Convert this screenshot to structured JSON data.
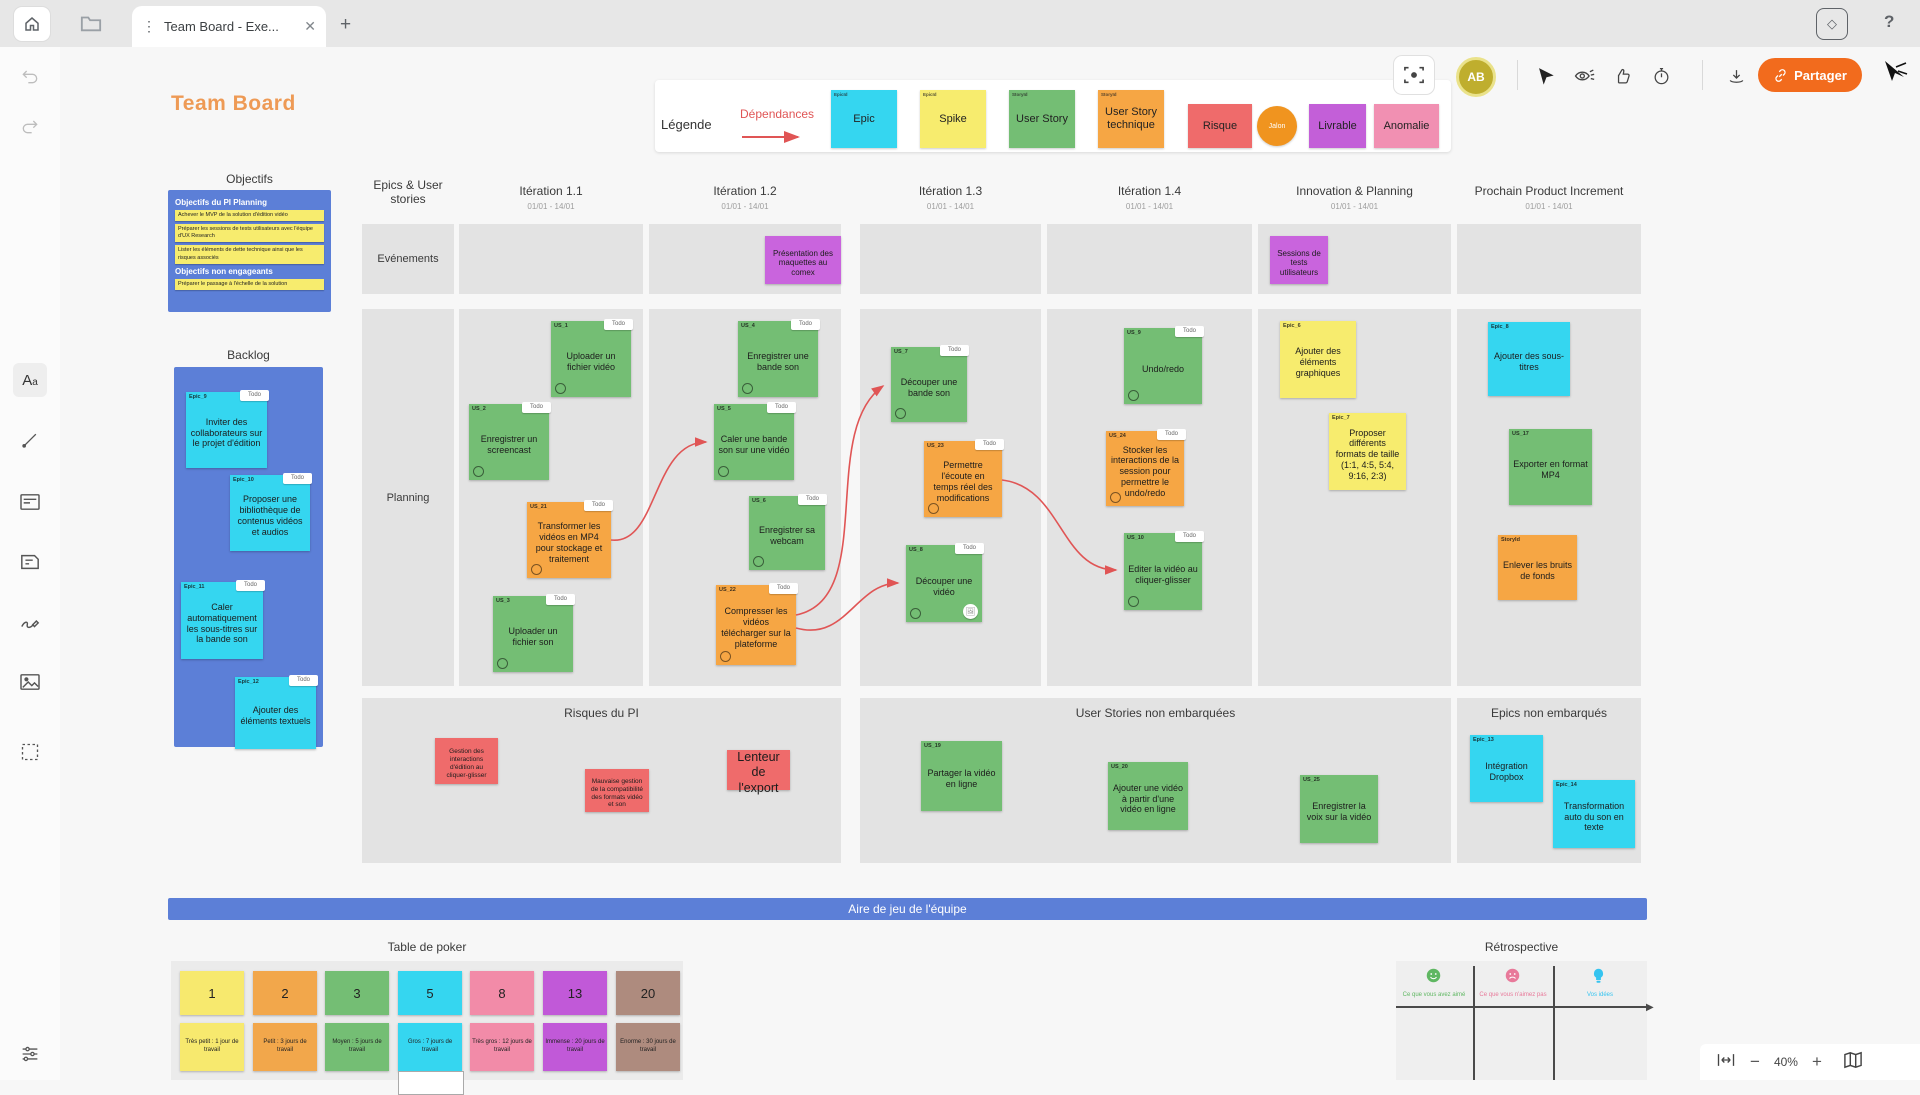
{
  "window": {
    "tab_title": "Team Board - Exe...",
    "share_label": "Partager",
    "avatar_initials": "AB",
    "help_label": "?",
    "zoom_level": "40%"
  },
  "legend": {
    "title": "Légende",
    "dependencies_label": "Dépendances",
    "items": [
      {
        "label": "Epic",
        "tag": "EpicId",
        "color": "#35D6F0",
        "shape": "card"
      },
      {
        "label": "Spike",
        "tag": "EpicId",
        "color": "#F7EC6E",
        "shape": "card"
      },
      {
        "label": "User Story",
        "tag": "StoryId",
        "color": "#74BE74",
        "shape": "card"
      },
      {
        "label": "User Story technique",
        "tag": "StoryId",
        "color": "#F6A644",
        "shape": "card"
      },
      {
        "label": "Risque",
        "color": "#EF6B6B",
        "shape": "rect"
      },
      {
        "label": "Jalon",
        "color": "#F0941F",
        "shape": "circle"
      },
      {
        "label": "Livrable",
        "color": "#C35FD8",
        "shape": "rect"
      },
      {
        "label": "Anomalie",
        "color": "#F190B2",
        "shape": "rect"
      }
    ]
  },
  "board": {
    "title": "Team Board",
    "columns": [
      {
        "label": "Epics & User stories",
        "dates": ""
      },
      {
        "label": "Itération 1.1",
        "dates": "01/01 - 14/01"
      },
      {
        "label": "Itération 1.2",
        "dates": "01/01 - 14/01"
      },
      {
        "label": "Itération 1.3",
        "dates": "01/01 - 14/01"
      },
      {
        "label": "Itération 1.4",
        "dates": "01/01 - 14/01"
      },
      {
        "label": "Innovation & Planning",
        "dates": "01/01 - 14/01"
      },
      {
        "label": "Prochain Product Increment",
        "dates": "01/01 - 14/01"
      }
    ],
    "row_labels": {
      "events": "Evénements",
      "planning": "Planning"
    },
    "objectifs": {
      "title": "Objectifs",
      "section1": "Objectifs du PI Planning",
      "items1": [
        "Achever le MVP de la solution d'édition vidéo",
        "Préparer les sessions de tests utilisateurs avec l'équipe d'UX Research",
        "Lister les éléments de dette technique ainsi que les risques associés"
      ],
      "section2": "Objectifs non engageants",
      "items2": [
        "Préparer le passage à l'échelle de la solution"
      ]
    },
    "backlog_title": "Backlog",
    "sections": {
      "risks": "Risques du PI",
      "stories": "User Stories non embarquées",
      "epics": "Epics non embarqués"
    },
    "play_area": "Aire de jeu de l'équipe",
    "notes": {
      "ev_comex": {
        "type": "event",
        "text": "Présentation des maquettes au comex"
      },
      "ev_tests": {
        "type": "event",
        "text": "Sessions de tests utilisateurs"
      },
      "us1": {
        "type": "story",
        "tag": "US_1",
        "chip": "Todo",
        "text": "Uploader un fichier vidéo",
        "badge": true
      },
      "us2": {
        "type": "story",
        "tag": "US_2",
        "chip": "Todo",
        "text": "Enregistrer un screencast",
        "badge": true
      },
      "us21": {
        "type": "tech",
        "tag": "US_21",
        "chip": "Todo",
        "text": "Transformer les vidéos en MP4 pour stockage et traitement",
        "badge": true
      },
      "us3": {
        "type": "story",
        "tag": "US_3",
        "chip": "Todo",
        "text": "Uploader un fichier son",
        "badge": true
      },
      "us4": {
        "type": "story",
        "tag": "US_4",
        "chip": "Todo",
        "text": "Enregistrer une bande son",
        "badge": true
      },
      "us5": {
        "type": "story",
        "tag": "US_5",
        "chip": "Todo",
        "text": "Caler une bande son sur une vidéo",
        "badge": true
      },
      "us6": {
        "type": "story",
        "tag": "US_6",
        "chip": "Todo",
        "text": "Enregistrer sa webcam",
        "badge": true
      },
      "us22": {
        "type": "tech",
        "tag": "US_22",
        "chip": "Todo",
        "text": "Compresser les vidéos télécharger sur la plateforme",
        "badge": true
      },
      "us7": {
        "type": "story",
        "tag": "US_7",
        "chip": "Todo",
        "text": "Découper une bande son",
        "badge": true
      },
      "us23": {
        "type": "tech",
        "tag": "US_23",
        "chip": "Todo",
        "text": "Permettre l'écoute en temps réel des modifications",
        "badge": true
      },
      "us8": {
        "type": "story",
        "tag": "US_8",
        "chip": "Todo",
        "text": "Découper une vidéo",
        "badge": true,
        "attach": true
      },
      "us9": {
        "type": "story",
        "tag": "US_9",
        "chip": "Todo",
        "text": "Undo/redo",
        "badge": true
      },
      "us24": {
        "type": "tech",
        "tag": "US_24",
        "chip": "Todo",
        "text": "Stocker les interactions de la session pour permettre le undo/redo",
        "badge": true
      },
      "us10": {
        "type": "story",
        "tag": "US_10",
        "chip": "Todo",
        "text": "Editer la vidéo au cliquer-glisser",
        "badge": true
      },
      "epic6": {
        "type": "spike",
        "tag": "Epic_6",
        "text": "Ajouter des éléments graphiques"
      },
      "epic7": {
        "type": "spike",
        "tag": "Epic_7",
        "text": "Proposer différents formats de taille (1:1, 4:5, 5:4, 9:16, 2:3)"
      },
      "epic8": {
        "type": "epic",
        "tag": "Epic_8",
        "text": "Ajouter des sous-titres"
      },
      "us17": {
        "type": "story",
        "tag": "US_17",
        "text": "Exporter en format MP4"
      },
      "st_noise": {
        "type": "tech",
        "tag": "StoryId",
        "text": "Enlever les bruits de fonds"
      },
      "epic9": {
        "type": "epic",
        "tag": "Epic_9",
        "chip": "Todo",
        "text": "Inviter des collaborateurs sur le projet d'édition"
      },
      "epic10": {
        "type": "epic",
        "tag": "Epic_10",
        "chip": "Todo",
        "text": "Proposer une bibliothèque de contenus vidéos et audios"
      },
      "epic11": {
        "type": "epic",
        "tag": "Epic_11",
        "chip": "Todo",
        "text": "Caler automatiquement les sous-titres sur la bande son"
      },
      "epic12": {
        "type": "epic",
        "tag": "Epic_12",
        "chip": "Todo",
        "text": "Ajouter des éléments textuels"
      },
      "risk1": {
        "type": "risk",
        "text": "Gestion des interactions d'édition au cliquer-glisser",
        "size": "small"
      },
      "risk2": {
        "type": "risk",
        "text": "Mauvaise gestion de la compatibilité des formats vidéo et son",
        "size": "small"
      },
      "risk3": {
        "type": "risk",
        "text": "Lenteur de l'export",
        "size": "big"
      },
      "us19": {
        "type": "story",
        "tag": "US_19",
        "text": "Partager la vidéo en ligne"
      },
      "us20": {
        "type": "story",
        "tag": "US_20",
        "text": "Ajouter une vidéo à partir d'une vidéo en ligne"
      },
      "us25": {
        "type": "story",
        "tag": "US_25",
        "text": "Enregistrer la voix sur la vidéo"
      },
      "epic13": {
        "type": "epic",
        "tag": "Epic_13",
        "text": "Intégration Dropbox"
      },
      "epic14": {
        "type": "epic",
        "tag": "Epic_14",
        "text": "Transformation auto du son en texte"
      }
    },
    "poker": {
      "title": "Table de poker",
      "cards": [
        {
          "value": "1",
          "label": "Très petit : 1 jour de travail",
          "color": "#F7E96E"
        },
        {
          "value": "2",
          "label": "Petit : 3 jours de travail",
          "color": "#F2A74B"
        },
        {
          "value": "3",
          "label": "Moyen : 5 jours de travail",
          "color": "#74BE74"
        },
        {
          "value": "5",
          "label": "Gros : 7 jours de travail",
          "color": "#35D6F0"
        },
        {
          "value": "8",
          "label": "Très gros : 12 jours de travail",
          "color": "#F28BA8"
        },
        {
          "value": "13",
          "label": "Immense : 20 jours de travail",
          "color": "#C159D8"
        },
        {
          "value": "20",
          "label": "Enorme : 30 jours de travail",
          "color": "#AE8B7E"
        }
      ]
    },
    "retro": {
      "title": "Rétrospective",
      "columns": [
        {
          "icon": "smiley-icon",
          "label": "Ce que vous avez aimé",
          "color": "#5FB762"
        },
        {
          "icon": "frowny-icon",
          "label": "Ce que vous n'aimez pas",
          "color": "#E8799A"
        },
        {
          "icon": "bulb-icon",
          "label": "Vos idées",
          "color": "#35C4F0"
        }
      ]
    }
  }
}
